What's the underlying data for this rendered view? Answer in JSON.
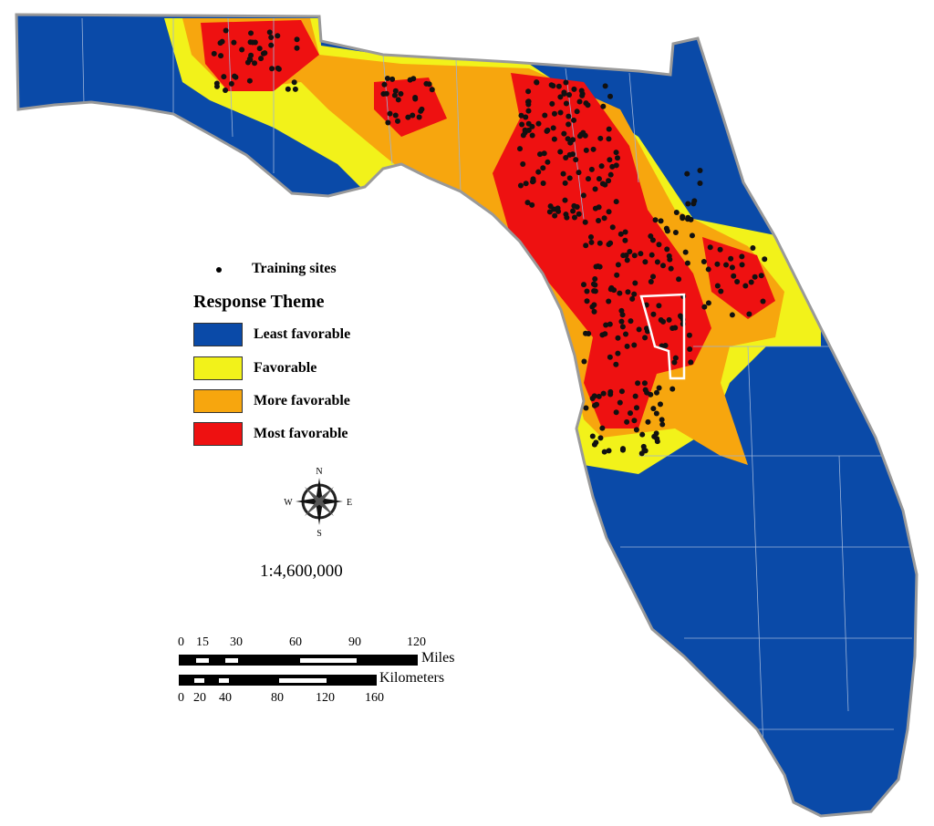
{
  "legend": {
    "training_sites_label": "Training sites",
    "title": "Response Theme",
    "items": [
      {
        "label": "Least favorable",
        "color": "#0a4aa8"
      },
      {
        "label": "Favorable",
        "color": "#f2f21a"
      },
      {
        "label": "More favorable",
        "color": "#f7a60e"
      },
      {
        "label": "Most favorable",
        "color": "#ee1111"
      }
    ]
  },
  "compass": {
    "n": "N",
    "s": "S",
    "e": "E",
    "w": "W"
  },
  "scale_ratio": "1:4,600,000",
  "scale_bar": {
    "miles_label": "Miles",
    "miles_ticks": [
      "0",
      "15",
      "30",
      "60",
      "90",
      "120"
    ],
    "km_label": "Kilometers",
    "km_ticks": [
      "0",
      "20",
      "40",
      "80",
      "120",
      "160"
    ]
  },
  "colors": {
    "county_lines": "#9bb3d9",
    "water_outline": "#999999",
    "study_area_outline": "#ffffff"
  }
}
